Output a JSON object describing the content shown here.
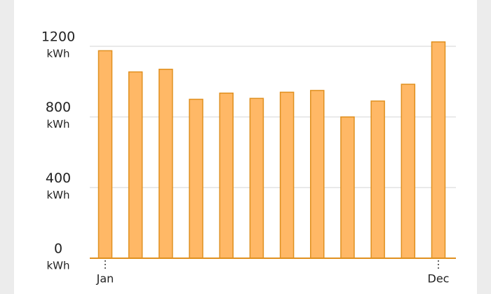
{
  "chart_data": {
    "type": "bar",
    "categories": [
      "Jan",
      null,
      null,
      null,
      null,
      null,
      null,
      null,
      null,
      null,
      null,
      "Dec"
    ],
    "values": [
      1175,
      1055,
      1070,
      900,
      935,
      905,
      940,
      950,
      800,
      890,
      985,
      1225
    ],
    "color": "#ffb866",
    "edge_color": "#e0901f",
    "ylim": [
      0,
      1200
    ],
    "yticks": [
      0,
      400,
      800,
      1200
    ],
    "y_unit": "kWh",
    "grid": true
  }
}
